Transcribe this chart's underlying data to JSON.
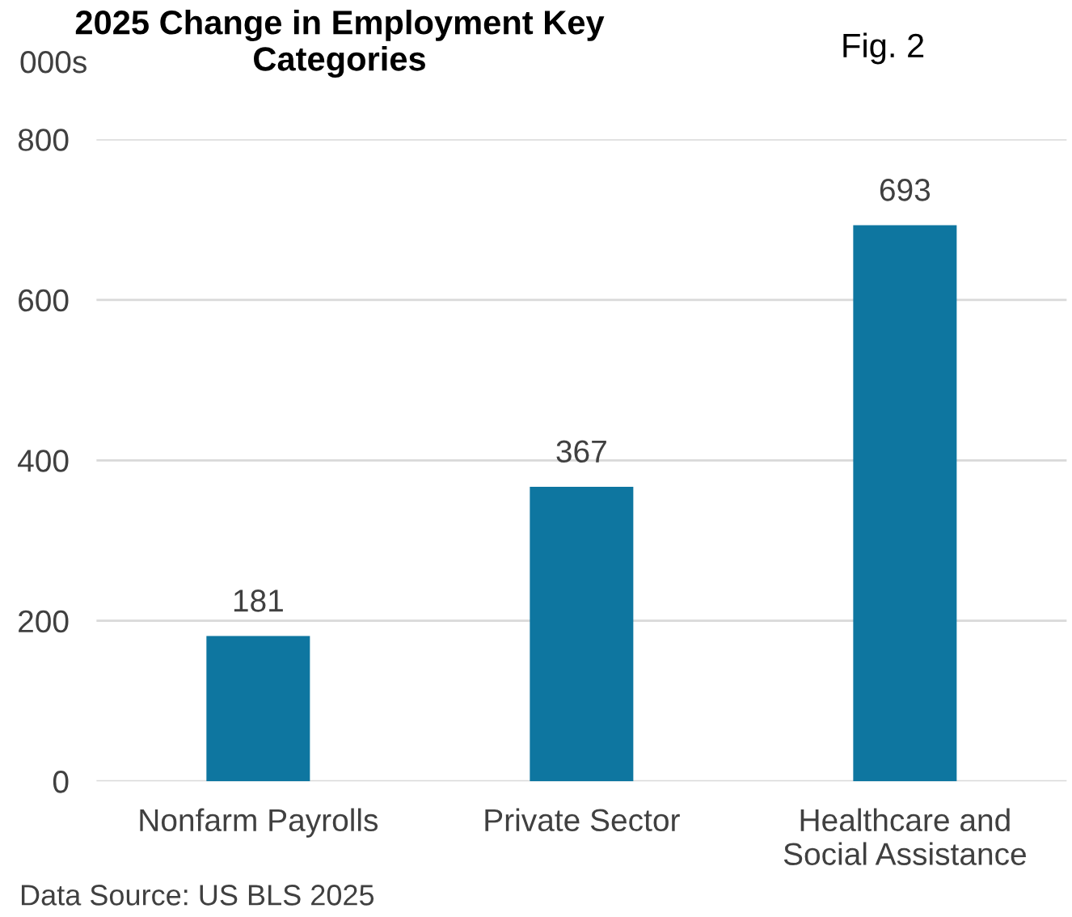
{
  "chart_data": {
    "type": "bar",
    "title": "2025 Change in Employment Key Categories",
    "ylabel": "000s",
    "annotations": [
      "Fig. 2",
      "Data Source: US BLS 2025"
    ],
    "categories": [
      "Nonfarm Payrolls",
      "Private Sector",
      "Healthcare and Social Assistance"
    ],
    "values": [
      181,
      367,
      693
    ],
    "color": "#0e76a0",
    "ylim": [
      0,
      800
    ],
    "yticks": [
      0,
      200,
      400,
      600,
      800
    ],
    "grid": "y",
    "data_labels": true
  }
}
